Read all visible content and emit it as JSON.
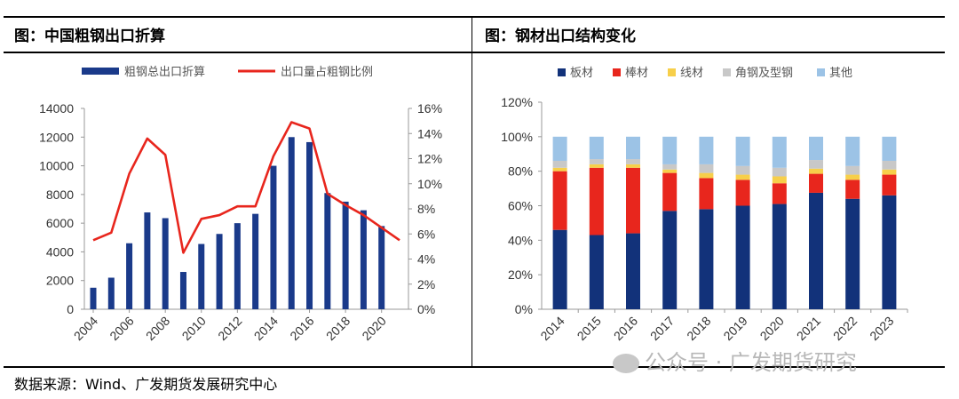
{
  "left_panel": {
    "title": "图：中国粗钢出口折算"
  },
  "right_panel": {
    "title": "图：钢材出口结构变化"
  },
  "source": "数据来源：Wind、广发期货发展研究中心",
  "watermark": "公众号 · 广发期货研究",
  "chart_data": [
    {
      "type": "bar",
      "title": "",
      "legend_position": "top",
      "grid": false,
      "x_tick_labels": [
        "2004",
        "2006",
        "2008",
        "2010",
        "2012",
        "2014",
        "2016",
        "2018",
        "2020"
      ],
      "y_left": {
        "ylim": [
          0,
          14000
        ],
        "ticks": [
          0,
          2000,
          4000,
          6000,
          8000,
          10000,
          12000,
          14000
        ]
      },
      "y_right": {
        "ylim": [
          0,
          0.16
        ],
        "ticks": [
          "0%",
          "2%",
          "4%",
          "6%",
          "8%",
          "10%",
          "12%",
          "14%",
          "16%"
        ]
      },
      "x": [
        2004,
        2005,
        2006,
        2007,
        2008,
        2009,
        2010,
        2011,
        2012,
        2013,
        2014,
        2015,
        2016,
        2017,
        2018,
        2019,
        2020,
        2021
      ],
      "series": [
        {
          "name": "粗钢总出口折算",
          "type": "bar",
          "color": "#1a3a8a",
          "axis": "left",
          "values": [
            1500,
            2200,
            4600,
            6750,
            6350,
            2600,
            4550,
            5250,
            6000,
            6650,
            10000,
            12000,
            11650,
            8100,
            7500,
            6900,
            5800,
            null
          ]
        },
        {
          "name": "出口量占粗钢比例",
          "type": "line",
          "color": "#e8261d",
          "axis": "right",
          "values": [
            0.055,
            0.061,
            0.108,
            0.136,
            0.123,
            0.045,
            0.072,
            0.075,
            0.082,
            0.082,
            0.122,
            0.149,
            0.144,
            0.092,
            0.083,
            0.075,
            0.065,
            0.055
          ]
        }
      ]
    },
    {
      "type": "bar",
      "stacked": true,
      "title": "",
      "legend_position": "top",
      "grid": false,
      "categories": [
        "2014",
        "2015",
        "2016",
        "2017",
        "2018",
        "2019",
        "2020",
        "2021",
        "2022",
        "2023"
      ],
      "ylim": [
        0,
        1.2
      ],
      "y_ticks": [
        "0%",
        "20%",
        "40%",
        "60%",
        "80%",
        "100%",
        "120%"
      ],
      "series": [
        {
          "name": "板材",
          "color": "#12327a",
          "values": [
            0.46,
            0.43,
            0.44,
            0.57,
            0.58,
            0.6,
            0.61,
            0.675,
            0.64,
            0.66
          ]
        },
        {
          "name": "棒材",
          "color": "#e8261d",
          "values": [
            0.34,
            0.39,
            0.38,
            0.22,
            0.18,
            0.15,
            0.12,
            0.11,
            0.11,
            0.12
          ]
        },
        {
          "name": "线材",
          "color": "#f7cf4a",
          "values": [
            0.02,
            0.02,
            0.02,
            0.02,
            0.03,
            0.03,
            0.04,
            0.03,
            0.03,
            0.03
          ]
        },
        {
          "name": "角钢及型钢",
          "color": "#c8c8c8",
          "values": [
            0.04,
            0.03,
            0.03,
            0.03,
            0.05,
            0.05,
            0.05,
            0.05,
            0.05,
            0.05
          ]
        },
        {
          "name": "其他",
          "color": "#9cc3e6",
          "values": [
            0.14,
            0.13,
            0.13,
            0.16,
            0.16,
            0.17,
            0.18,
            0.135,
            0.17,
            0.14
          ]
        }
      ]
    }
  ]
}
